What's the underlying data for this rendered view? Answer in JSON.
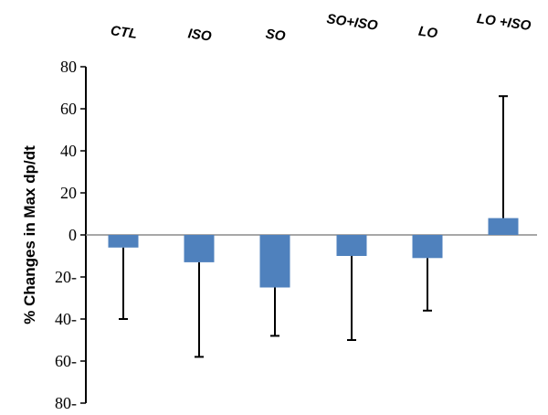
{
  "chart_data": {
    "type": "bar",
    "ylabel": "% Changes in Max dp/dt",
    "ylim": [
      -80,
      80
    ],
    "y_ticks": [
      80,
      60,
      40,
      20,
      0,
      -20,
      -40,
      -60,
      -80
    ],
    "y_tick_labels": [
      "80",
      "60",
      "40",
      "20",
      "0",
      "20-",
      "40-",
      "60-",
      "80-"
    ],
    "categories": [
      "CTL",
      "ISO",
      "SO",
      "SO+ISO",
      "LO",
      "LO +ISO"
    ],
    "values": [
      -6,
      -13,
      -25,
      -10,
      -11,
      8
    ],
    "error_bars": [
      -40,
      -58,
      -48,
      -50,
      -36,
      66
    ],
    "bar_color": "#4f81bd",
    "error_color": "#000000",
    "zero_line_color": "#8c8c8c",
    "category_label_position": "top",
    "grid": false,
    "legend": "none"
  }
}
